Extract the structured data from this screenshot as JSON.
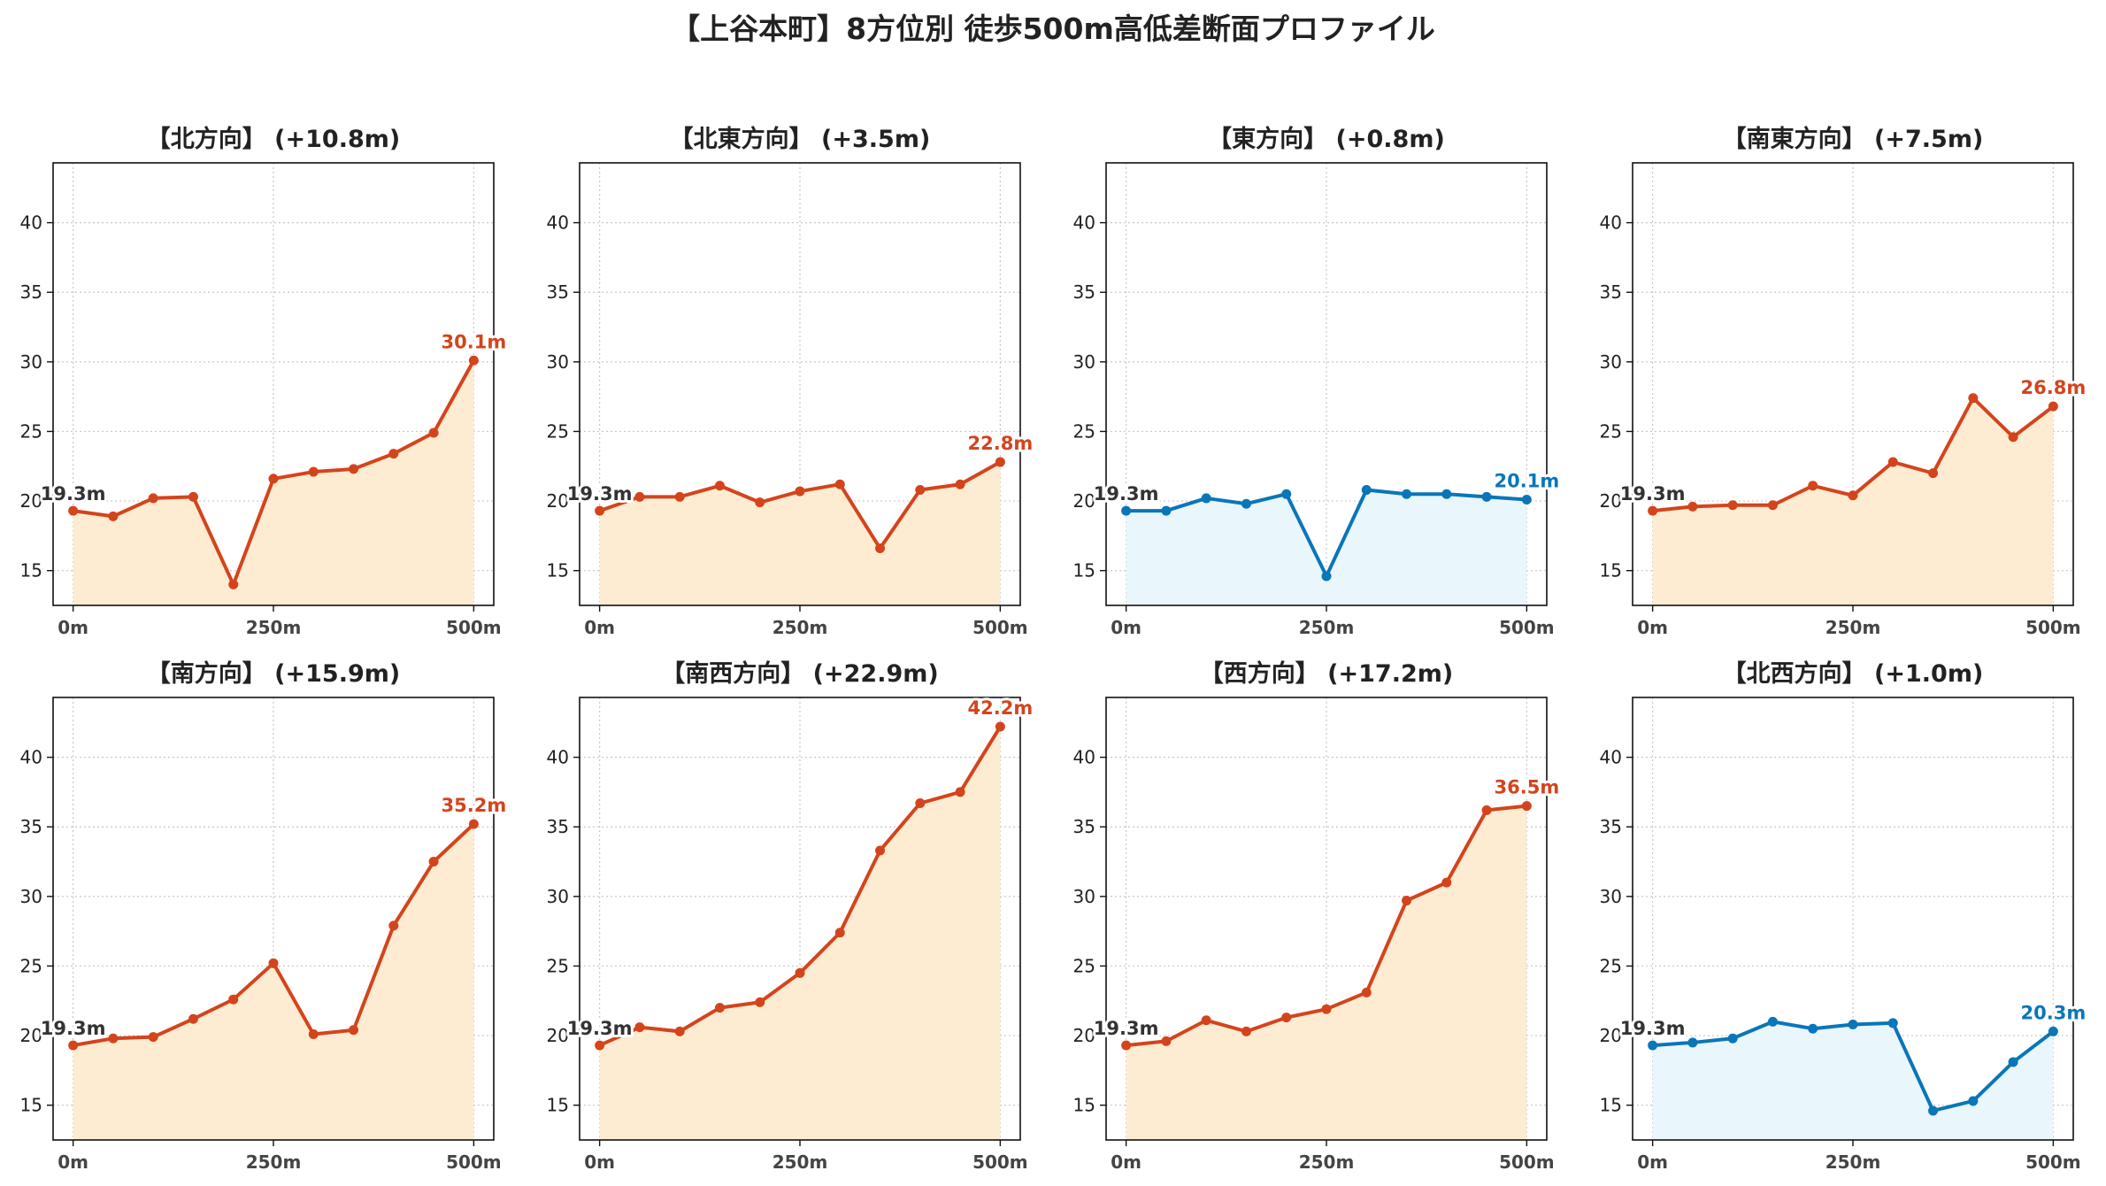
{
  "title": "【上谷本町】8方位別 徒歩500m高低差断面プロファイル",
  "colors": {
    "up_line": "#d4441c",
    "up_fill": "#feecd2",
    "flat_line": "#0a76b9",
    "flat_fill": "#e9f6fc",
    "grid": "#c8c8c8"
  },
  "chart_data": [
    {
      "type": "area",
      "title": "【北方向】 (+10.8m)",
      "trend": "up",
      "x": [
        0,
        50,
        100,
        150,
        200,
        250,
        300,
        350,
        400,
        450,
        500
      ],
      "values": [
        19.3,
        18.9,
        20.2,
        20.3,
        14.0,
        21.6,
        22.1,
        22.3,
        23.4,
        24.9,
        30.1
      ],
      "start_label": "19.3m",
      "end_label": "30.1m",
      "xticks": [
        "0m",
        "250m",
        "500m"
      ],
      "yticks": [
        "15",
        "20",
        "25",
        "30",
        "35",
        "40"
      ],
      "ylim": [
        12.5,
        44.3
      ],
      "xlim": [
        -25,
        525
      ],
      "grid": true
    },
    {
      "type": "area",
      "title": "【北東方向】 (+3.5m)",
      "trend": "up",
      "x": [
        0,
        50,
        100,
        150,
        200,
        250,
        300,
        350,
        400,
        450,
        500
      ],
      "values": [
        19.3,
        20.3,
        20.3,
        21.1,
        19.9,
        20.7,
        21.2,
        16.6,
        20.8,
        21.2,
        22.8
      ],
      "start_label": "19.3m",
      "end_label": "22.8m",
      "xticks": [
        "0m",
        "250m",
        "500m"
      ],
      "yticks": [
        "15",
        "20",
        "25",
        "30",
        "35",
        "40"
      ],
      "ylim": [
        12.5,
        44.3
      ],
      "xlim": [
        -25,
        525
      ],
      "grid": true
    },
    {
      "type": "area",
      "title": "【東方向】 (+0.8m)",
      "trend": "flat",
      "x": [
        0,
        50,
        100,
        150,
        200,
        250,
        300,
        350,
        400,
        450,
        500
      ],
      "values": [
        19.3,
        19.3,
        20.2,
        19.8,
        20.5,
        14.6,
        20.8,
        20.5,
        20.5,
        20.3,
        20.1
      ],
      "start_label": "19.3m",
      "end_label": "20.1m",
      "xticks": [
        "0m",
        "250m",
        "500m"
      ],
      "yticks": [
        "15",
        "20",
        "25",
        "30",
        "35",
        "40"
      ],
      "ylim": [
        12.5,
        44.3
      ],
      "xlim": [
        -25,
        525
      ],
      "grid": true
    },
    {
      "type": "area",
      "title": "【南東方向】 (+7.5m)",
      "trend": "up",
      "x": [
        0,
        50,
        100,
        150,
        200,
        250,
        300,
        350,
        400,
        450,
        500
      ],
      "values": [
        19.3,
        19.6,
        19.7,
        19.7,
        21.1,
        20.4,
        22.8,
        22.0,
        27.4,
        24.6,
        26.8
      ],
      "start_label": "19.3m",
      "end_label": "26.8m",
      "xticks": [
        "0m",
        "250m",
        "500m"
      ],
      "yticks": [
        "15",
        "20",
        "25",
        "30",
        "35",
        "40"
      ],
      "ylim": [
        12.5,
        44.3
      ],
      "xlim": [
        -25,
        525
      ],
      "grid": true
    },
    {
      "type": "area",
      "title": "【南方向】 (+15.9m)",
      "trend": "up",
      "x": [
        0,
        50,
        100,
        150,
        200,
        250,
        300,
        350,
        400,
        450,
        500
      ],
      "values": [
        19.3,
        19.8,
        19.9,
        21.2,
        22.6,
        25.2,
        20.1,
        20.4,
        27.9,
        32.5,
        35.2
      ],
      "start_label": "19.3m",
      "end_label": "35.2m",
      "xticks": [
        "0m",
        "250m",
        "500m"
      ],
      "yticks": [
        "15",
        "20",
        "25",
        "30",
        "35",
        "40"
      ],
      "ylim": [
        12.5,
        44.3
      ],
      "xlim": [
        -25,
        525
      ],
      "grid": true
    },
    {
      "type": "area",
      "title": "【南西方向】 (+22.9m)",
      "trend": "up",
      "x": [
        0,
        50,
        100,
        150,
        200,
        250,
        300,
        350,
        400,
        450,
        500
      ],
      "values": [
        19.3,
        20.6,
        20.3,
        22.0,
        22.4,
        24.5,
        27.4,
        33.3,
        36.7,
        37.5,
        42.2
      ],
      "start_label": "19.3m",
      "end_label": "42.2m",
      "xticks": [
        "0m",
        "250m",
        "500m"
      ],
      "yticks": [
        "15",
        "20",
        "25",
        "30",
        "35",
        "40"
      ],
      "ylim": [
        12.5,
        44.3
      ],
      "xlim": [
        -25,
        525
      ],
      "grid": true
    },
    {
      "type": "area",
      "title": "【西方向】 (+17.2m)",
      "trend": "up",
      "x": [
        0,
        50,
        100,
        150,
        200,
        250,
        300,
        350,
        400,
        450,
        500
      ],
      "values": [
        19.3,
        19.6,
        21.1,
        20.3,
        21.3,
        21.9,
        23.1,
        29.7,
        31.0,
        36.2,
        36.5
      ],
      "start_label": "19.3m",
      "end_label": "36.5m",
      "xticks": [
        "0m",
        "250m",
        "500m"
      ],
      "yticks": [
        "15",
        "20",
        "25",
        "30",
        "35",
        "40"
      ],
      "ylim": [
        12.5,
        44.3
      ],
      "xlim": [
        -25,
        525
      ],
      "grid": true
    },
    {
      "type": "area",
      "title": "【北西方向】 (+1.0m)",
      "trend": "flat",
      "x": [
        0,
        50,
        100,
        150,
        200,
        250,
        300,
        350,
        400,
        450,
        500
      ],
      "values": [
        19.3,
        19.5,
        19.8,
        21.0,
        20.5,
        20.8,
        20.9,
        14.6,
        15.3,
        18.1,
        20.3
      ],
      "start_label": "19.3m",
      "end_label": "20.3m",
      "xticks": [
        "0m",
        "250m",
        "500m"
      ],
      "yticks": [
        "15",
        "20",
        "25",
        "30",
        "35",
        "40"
      ],
      "ylim": [
        12.5,
        44.3
      ],
      "xlim": [
        -25,
        525
      ],
      "grid": true
    }
  ]
}
